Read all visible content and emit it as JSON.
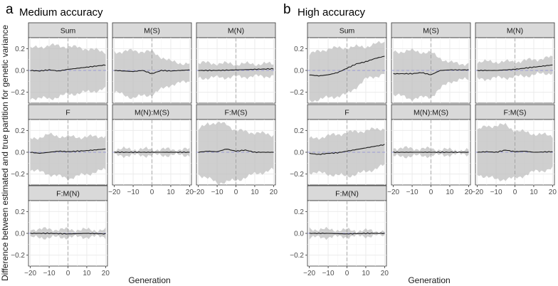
{
  "figure": {
    "ylabel": "Difference between estimated and true partition for genetic variance",
    "xlabel": "Generation",
    "sections": [
      {
        "letter": "a",
        "title": "Medium accuracy"
      },
      {
        "letter": "b",
        "title": "High accuracy"
      }
    ]
  },
  "chart_data": [
    {
      "type": "line",
      "section": "a",
      "title": "Medium accuracy",
      "xlabel": "Generation",
      "ylabel": "Difference between estimated and true partition for genetic variance",
      "xlim": [
        -21,
        21
      ],
      "ylim": [
        -0.3,
        0.3
      ],
      "x_ticks": [
        -20,
        -10,
        0,
        10,
        20
      ],
      "x_tick_labels": [
        "−20",
        "−10",
        "0",
        "10",
        "20"
      ],
      "y_ticks": [
        -0.2,
        0,
        0.2
      ],
      "y_tick_labels": [
        "−0.2",
        "0.0",
        "0.2"
      ],
      "reference_lines": {
        "hline_y": 0,
        "vline_x": 0
      },
      "panels": [
        {
          "label": "Sum",
          "mean": [
            [
              -20,
              0
            ],
            [
              -15,
              -0.005
            ],
            [
              -10,
              0.005
            ],
            [
              -5,
              -0.005
            ],
            [
              0,
              0.01
            ],
            [
              5,
              0.02
            ],
            [
              10,
              0.03
            ],
            [
              15,
              0.04
            ],
            [
              20,
              0.05
            ]
          ],
          "lower": [
            [
              -20,
              -0.25
            ],
            [
              -10,
              -0.26
            ],
            [
              0,
              -0.22
            ],
            [
              10,
              -0.2
            ],
            [
              20,
              -0.17
            ]
          ],
          "upper": [
            [
              -20,
              0.2
            ],
            [
              -10,
              0.23
            ],
            [
              0,
              0.22
            ],
            [
              10,
              0.2
            ],
            [
              20,
              0.17
            ]
          ]
        },
        {
          "label": "M(S)",
          "mean": [
            [
              -20,
              0
            ],
            [
              -10,
              -0.01
            ],
            [
              -5,
              0
            ],
            [
              0,
              -0.03
            ],
            [
              5,
              0
            ],
            [
              10,
              -0.005
            ],
            [
              20,
              0.005
            ]
          ],
          "lower": [
            [
              -20,
              -0.2
            ],
            [
              -10,
              -0.25
            ],
            [
              0,
              -0.22
            ],
            [
              10,
              -0.13
            ],
            [
              20,
              -0.1
            ]
          ],
          "upper": [
            [
              -20,
              0.17
            ],
            [
              -10,
              0.18
            ],
            [
              0,
              0.17
            ],
            [
              10,
              0.08
            ],
            [
              20,
              0.06
            ]
          ]
        },
        {
          "label": "M(N)",
          "mean": [
            [
              -20,
              0
            ],
            [
              -10,
              0
            ],
            [
              0,
              0.005
            ],
            [
              10,
              0.01
            ],
            [
              20,
              0.015
            ]
          ],
          "lower": [
            [
              -20,
              -0.07
            ],
            [
              0,
              -0.06
            ],
            [
              20,
              -0.05
            ]
          ],
          "upper": [
            [
              -20,
              0.07
            ],
            [
              0,
              0.06
            ],
            [
              20,
              0.06
            ]
          ]
        },
        {
          "label": "F",
          "mean": [
            [
              -20,
              0
            ],
            [
              -15,
              -0.01
            ],
            [
              -10,
              0
            ],
            [
              -5,
              0.01
            ],
            [
              0,
              0.005
            ],
            [
              10,
              0.015
            ],
            [
              20,
              0.03
            ]
          ],
          "lower": [
            [
              -20,
              -0.16
            ],
            [
              -10,
              -0.2
            ],
            [
              0,
              -0.24
            ],
            [
              10,
              -0.2
            ],
            [
              20,
              -0.16
            ]
          ],
          "upper": [
            [
              -20,
              0.12
            ],
            [
              -10,
              0.16
            ],
            [
              0,
              0.14
            ],
            [
              10,
              0.14
            ],
            [
              20,
              0.15
            ]
          ]
        },
        {
          "label": "M(N):M(S)",
          "mean": [
            [
              -20,
              0
            ],
            [
              0,
              0
            ],
            [
              20,
              0
            ]
          ],
          "lower": [
            [
              -20,
              -0.03
            ],
            [
              20,
              -0.025
            ]
          ],
          "upper": [
            [
              -20,
              0.03
            ],
            [
              20,
              0.025
            ]
          ]
        },
        {
          "label": "F:M(S)",
          "mean": [
            [
              -20,
              0
            ],
            [
              -15,
              0.01
            ],
            [
              -10,
              0.005
            ],
            [
              -5,
              0.03
            ],
            [
              0,
              0.01
            ],
            [
              5,
              0.02
            ],
            [
              10,
              0
            ],
            [
              20,
              0
            ]
          ],
          "lower": [
            [
              -20,
              -0.2
            ],
            [
              -10,
              -0.28
            ],
            [
              0,
              -0.26
            ],
            [
              10,
              -0.2
            ],
            [
              20,
              -0.16
            ]
          ],
          "upper": [
            [
              -20,
              0.2
            ],
            [
              -15,
              0.27
            ],
            [
              -5,
              0.26
            ],
            [
              0,
              0.2
            ],
            [
              10,
              0.18
            ],
            [
              20,
              0.16
            ]
          ]
        },
        {
          "label": "F:M(N)",
          "mean": [
            [
              -20,
              0
            ],
            [
              -10,
              0
            ],
            [
              0,
              -0.005
            ],
            [
              10,
              0
            ],
            [
              20,
              -0.005
            ]
          ],
          "lower": [
            [
              -20,
              -0.04
            ],
            [
              20,
              -0.03
            ]
          ],
          "upper": [
            [
              -20,
              0.04
            ],
            [
              20,
              0.03
            ]
          ]
        }
      ]
    },
    {
      "type": "line",
      "section": "b",
      "title": "High accuracy",
      "xlabel": "Generation",
      "ylabel": "Difference between estimated and true partition for genetic variance",
      "xlim": [
        -21,
        21
      ],
      "ylim": [
        -0.3,
        0.3
      ],
      "x_ticks": [
        -20,
        -10,
        0,
        10,
        20
      ],
      "x_tick_labels": [
        "−20",
        "−10",
        "0",
        "10",
        "20"
      ],
      "y_ticks": [
        -0.2,
        0,
        0.2
      ],
      "y_tick_labels": [
        "−0.2",
        "0.0",
        "0.2"
      ],
      "reference_lines": {
        "hline_y": 0,
        "vline_x": 0
      },
      "panels": [
        {
          "label": "Sum",
          "mean": [
            [
              -20,
              -0.04
            ],
            [
              -15,
              -0.05
            ],
            [
              -10,
              -0.04
            ],
            [
              -5,
              -0.02
            ],
            [
              0,
              0.02
            ],
            [
              5,
              0.06
            ],
            [
              10,
              0.08
            ],
            [
              15,
              0.11
            ],
            [
              20,
              0.13
            ]
          ],
          "lower": [
            [
              -20,
              -0.28
            ],
            [
              -10,
              -0.25
            ],
            [
              0,
              -0.22
            ],
            [
              10,
              -0.08
            ],
            [
              20,
              -0.03
            ]
          ],
          "upper": [
            [
              -20,
              0.15
            ],
            [
              -10,
              0.2
            ],
            [
              0,
              0.21
            ],
            [
              10,
              0.22
            ],
            [
              20,
              0.26
            ]
          ]
        },
        {
          "label": "M(S)",
          "mean": [
            [
              -20,
              -0.03
            ],
            [
              -10,
              -0.03
            ],
            [
              -5,
              -0.02
            ],
            [
              0,
              -0.04
            ],
            [
              5,
              0
            ],
            [
              10,
              0.005
            ],
            [
              20,
              0.005
            ]
          ],
          "lower": [
            [
              -20,
              -0.22
            ],
            [
              -10,
              -0.26
            ],
            [
              0,
              -0.24
            ],
            [
              10,
              -0.1
            ],
            [
              20,
              -0.08
            ]
          ],
          "upper": [
            [
              -20,
              0.17
            ],
            [
              -10,
              0.18
            ],
            [
              0,
              0.16
            ],
            [
              10,
              0.07
            ],
            [
              20,
              0.06
            ]
          ]
        },
        {
          "label": "M(N)",
          "mean": [
            [
              -20,
              0
            ],
            [
              -10,
              0
            ],
            [
              0,
              0.01
            ],
            [
              10,
              0.03
            ],
            [
              20,
              0.05
            ]
          ],
          "lower": [
            [
              -20,
              -0.08
            ],
            [
              0,
              -0.06
            ],
            [
              20,
              -0.02
            ]
          ],
          "upper": [
            [
              -20,
              0.08
            ],
            [
              0,
              0.08
            ],
            [
              20,
              0.12
            ]
          ]
        },
        {
          "label": "F",
          "mean": [
            [
              -20,
              -0.01
            ],
            [
              -15,
              -0.02
            ],
            [
              -10,
              -0.01
            ],
            [
              -5,
              -0.005
            ],
            [
              0,
              0.01
            ],
            [
              10,
              0.04
            ],
            [
              20,
              0.07
            ]
          ],
          "lower": [
            [
              -20,
              -0.18
            ],
            [
              -10,
              -0.2
            ],
            [
              0,
              -0.22
            ],
            [
              10,
              -0.18
            ],
            [
              20,
              -0.12
            ]
          ],
          "upper": [
            [
              -20,
              0.12
            ],
            [
              -10,
              0.15
            ],
            [
              0,
              0.18
            ],
            [
              10,
              0.2
            ],
            [
              20,
              0.22
            ]
          ]
        },
        {
          "label": "M(N):M(S)",
          "mean": [
            [
              -20,
              0
            ],
            [
              0,
              0
            ],
            [
              20,
              0
            ]
          ],
          "lower": [
            [
              -20,
              -0.04
            ],
            [
              0,
              -0.03
            ],
            [
              20,
              -0.015
            ]
          ],
          "upper": [
            [
              -20,
              0.04
            ],
            [
              0,
              0.03
            ],
            [
              20,
              0.015
            ]
          ]
        },
        {
          "label": "F:M(S)",
          "mean": [
            [
              -20,
              0
            ],
            [
              -15,
              0.005
            ],
            [
              -10,
              0
            ],
            [
              -5,
              0.02
            ],
            [
              0,
              0.005
            ],
            [
              5,
              0.01
            ],
            [
              10,
              0
            ],
            [
              20,
              0.005
            ]
          ],
          "lower": [
            [
              -20,
              -0.2
            ],
            [
              -10,
              -0.25
            ],
            [
              0,
              -0.24
            ],
            [
              10,
              -0.18
            ],
            [
              20,
              -0.15
            ]
          ],
          "upper": [
            [
              -20,
              0.2
            ],
            [
              -15,
              0.24
            ],
            [
              -5,
              0.25
            ],
            [
              0,
              0.2
            ],
            [
              10,
              0.17
            ],
            [
              20,
              0.15
            ]
          ]
        },
        {
          "label": "F:M(N)",
          "mean": [
            [
              -20,
              0
            ],
            [
              -10,
              0
            ],
            [
              0,
              -0.005
            ],
            [
              10,
              0
            ],
            [
              20,
              0
            ]
          ],
          "lower": [
            [
              -20,
              -0.04
            ],
            [
              20,
              -0.02
            ]
          ],
          "upper": [
            [
              -20,
              0.04
            ],
            [
              20,
              0.02
            ]
          ]
        }
      ]
    }
  ]
}
